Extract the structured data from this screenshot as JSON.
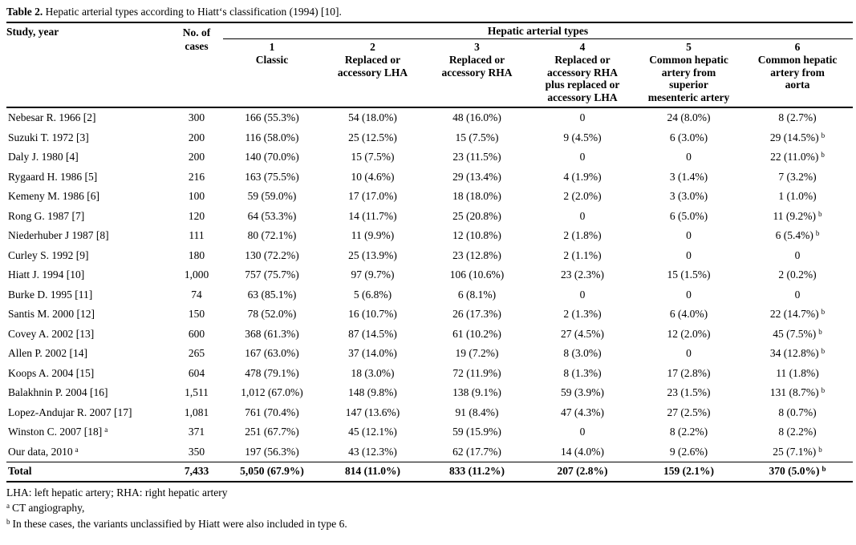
{
  "title": {
    "label": "Table 2.",
    "text": " Hepatic arterial types according to Hiatt‘s classification (1994) [10]."
  },
  "table": {
    "study_header": "Study, year",
    "cases_header": [
      "No. of",
      "cases"
    ],
    "group_header": "Hepatic arterial types",
    "type_headers": [
      {
        "num": "1",
        "name_lines": [
          "Classic"
        ]
      },
      {
        "num": "2",
        "name_lines": [
          "Replaced or",
          "accessory LHA"
        ]
      },
      {
        "num": "3",
        "name_lines": [
          "Replaced or",
          "accessory RHA"
        ]
      },
      {
        "num": "4",
        "name_lines": [
          "Replaced or",
          "accessory RHA",
          "plus replaced or",
          "accessory LHA"
        ]
      },
      {
        "num": "5",
        "name_lines": [
          "Common hepatic",
          "artery from",
          "superior",
          "mesenteric artery"
        ]
      },
      {
        "num": "6",
        "name_lines": [
          "Common hepatic",
          "artery from",
          "aorta"
        ]
      }
    ],
    "rows": [
      {
        "study": "Nebesar R. 1966 [2]",
        "cases": "300",
        "values": [
          "166 (55.3%)",
          "54 (18.0%)",
          "48 (16.0%)",
          "0",
          "24 (8.0%)",
          "8 (2.7%)"
        ]
      },
      {
        "study": "Suzuki T. 1972 [3]",
        "cases": "200",
        "values": [
          "116 (58.0%)",
          "25 (12.5%)",
          "15 (7.5%)",
          "9 (4.5%)",
          "6 (3.0%)",
          "29 (14.5%)^b"
        ]
      },
      {
        "study": "Daly J. 1980 [4]",
        "cases": "200",
        "values": [
          "140 (70.0%)",
          "15 (7.5%)",
          "23 (11.5%)",
          "0",
          "0",
          "22 (11.0%)^b"
        ]
      },
      {
        "study": "Rygaard H. 1986 [5]",
        "cases": "216",
        "values": [
          "163 (75.5%)",
          "10 (4.6%)",
          "29 (13.4%)",
          "4 (1.9%)",
          "3 (1.4%)",
          "7 (3.2%)"
        ]
      },
      {
        "study": "Kemeny M. 1986 [6]",
        "cases": "100",
        "values": [
          "59 (59.0%)",
          "17 (17.0%)",
          "18 (18.0%)",
          "2 (2.0%)",
          "3 (3.0%)",
          "1 (1.0%)"
        ]
      },
      {
        "study": "Rong G. 1987 [7]",
        "cases": "120",
        "values": [
          "64 (53.3%)",
          "14 (11.7%)",
          "25 (20.8%)",
          "0",
          "6 (5.0%)",
          "11 (9.2%)^b"
        ]
      },
      {
        "study": "Niederhuber J 1987 [8]",
        "cases": "111",
        "values": [
          "80 (72.1%)",
          "11 (9.9%)",
          "12 (10.8%)",
          "2 (1.8%)",
          "0",
          "6 (5.4%)^b"
        ]
      },
      {
        "study": "Curley S. 1992 [9]",
        "cases": "180",
        "values": [
          "130 (72.2%)",
          "25 (13.9%)",
          "23 (12.8%)",
          "2 (1.1%)",
          "0",
          "0"
        ]
      },
      {
        "study": "Hiatt J. 1994 [10]",
        "cases": "1,000",
        "values": [
          "757 (75.7%)",
          "97 (9.7%)",
          "106 (10.6%)",
          "23 (2.3%)",
          "15 (1.5%)",
          "2 (0.2%)"
        ]
      },
      {
        "study": "Burke D. 1995 [11]",
        "cases": "74",
        "values": [
          "63 (85.1%)",
          "5 (6.8%)",
          "6 (8.1%)",
          "0",
          "0",
          "0"
        ]
      },
      {
        "study": "Santis M. 2000 [12]",
        "cases": "150",
        "values": [
          "78 (52.0%)",
          "16 (10.7%)",
          "26 (17.3%)",
          "2 (1.3%)",
          "6 (4.0%)",
          "22 (14.7%)^b"
        ]
      },
      {
        "study": "Covey A. 2002 [13]",
        "cases": "600",
        "values": [
          "368 (61.3%)",
          "87 (14.5%)",
          "61 (10.2%)",
          "27 (4.5%)",
          "12 (2.0%)",
          "45 (7.5%)^b"
        ]
      },
      {
        "study": "Allen P. 2002 [14]",
        "cases": "265",
        "values": [
          "167 (63.0%)",
          "37 (14.0%)",
          "19 (7.2%)",
          "8 (3.0%)",
          "0",
          "34 (12.8%)^b"
        ]
      },
      {
        "study": "Koops A. 2004 [15]",
        "cases": "604",
        "values": [
          "478 (79.1%)",
          "18 (3.0%)",
          "72 (11.9%)",
          "8 (1.3%)",
          "17 (2.8%)",
          "11 (1.8%)"
        ]
      },
      {
        "study": "Balakhnin P. 2004 [16]",
        "cases": "1,511",
        "values": [
          "1,012 (67.0%)",
          "148 (9.8%)",
          "138 (9.1%)",
          "59 (3.9%)",
          "23 (1.5%)",
          "131 (8.7%)^b"
        ]
      },
      {
        "study": "Lopez-Andujar R. 2007 [17]",
        "cases": "1,081",
        "values": [
          "761 (70.4%)",
          "147 (13.6%)",
          "91 (8.4%)",
          "47 (4.3%)",
          "27 (2.5%)",
          "8 (0.7%)"
        ]
      },
      {
        "study": "Winston C. 2007 [18]^a",
        "cases": "371",
        "values": [
          "251 (67.7%)",
          "45 (12.1%)",
          "59 (15.9%)",
          "0",
          "8 (2.2%)",
          "8 (2.2%)"
        ]
      },
      {
        "study": "Our data, 2010^a",
        "cases": "350",
        "values": [
          "197 (56.3%)",
          "43 (12.3%)",
          "62 (17.7%)",
          "14 (4.0%)",
          "9 (2.6%)",
          "25 (7.1%)^b"
        ]
      }
    ],
    "total": {
      "study": "Total",
      "cases": "7,433",
      "values": [
        "5,050 (67.9%)",
        "814 (11.0%)",
        "833 (11.2%)",
        "207 (2.8%)",
        "159 (2.1%)",
        "370 (5.0%)^b"
      ]
    }
  },
  "footnotes": [
    {
      "sup": "",
      "text": "LHA: left hepatic artery; RHA: right hepatic artery"
    },
    {
      "sup": "a",
      "text": "CT angiography,"
    },
    {
      "sup": "b",
      "text": "In these cases, the variants unclassified by Hiatt were also included in type 6."
    }
  ]
}
